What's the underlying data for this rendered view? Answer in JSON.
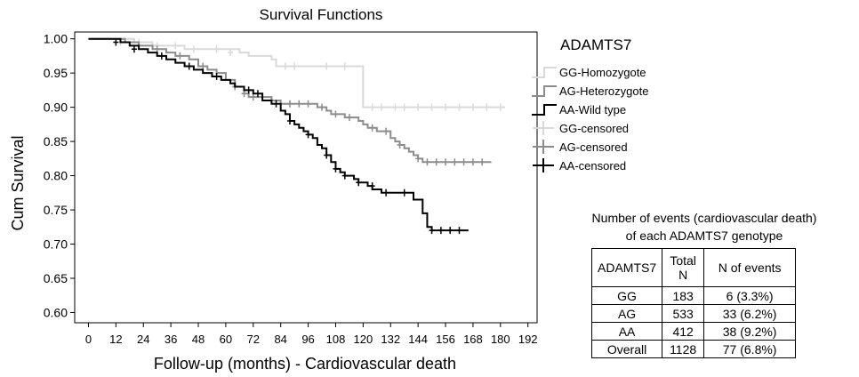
{
  "chart_data": {
    "type": "line",
    "title": "Survival Functions",
    "xlabel": "Follow-up (months) - Cardiovascular death",
    "ylabel": "Cum Survival",
    "xlim": [
      -6,
      196
    ],
    "ylim": [
      0.585,
      1.01
    ],
    "x_ticks": [
      0,
      12,
      24,
      36,
      48,
      60,
      72,
      84,
      96,
      108,
      120,
      132,
      144,
      156,
      168,
      180,
      192
    ],
    "x_tick_labels": [
      "0",
      "12",
      "24",
      "36",
      "48",
      "60",
      "72",
      "84",
      "96",
      "108",
      "120",
      "132",
      "144",
      "156",
      "168",
      "180",
      "192"
    ],
    "y_ticks": [
      0.6,
      0.65,
      0.7,
      0.75,
      0.8,
      0.85,
      0.9,
      0.95,
      1.0
    ],
    "y_tick_labels": [
      "0.60",
      "0.65",
      "0.70",
      "0.75",
      "0.80",
      "0.85",
      "0.90",
      "0.95",
      "1.00"
    ],
    "grid": false,
    "legend": {
      "title": "ADAMTS7",
      "placement": "right",
      "entries": [
        "GG-Homozygote",
        "AG-Heterozygote",
        "AA-Wild type",
        "GG-censored",
        "AG-censored",
        "AA-censored"
      ]
    },
    "series": [
      {
        "name": "GG-Homozygote",
        "censored_name": "GG-censored",
        "color": "#d9d9d9",
        "x": [
          0,
          12,
          20,
          28,
          34,
          42,
          50,
          66,
          70,
          80,
          82,
          94,
          98,
          118,
          120,
          182
        ],
        "y": [
          1.0,
          1.0,
          0.995,
          0.99,
          0.99,
          0.985,
          0.985,
          0.98,
          0.975,
          0.97,
          0.96,
          0.96,
          0.96,
          0.96,
          0.9,
          0.9
        ],
        "censored_x": [
          14,
          22,
          30,
          38,
          46,
          56,
          62,
          86,
          90,
          104,
          112,
          124,
          128,
          134,
          138,
          144,
          150,
          156,
          162,
          168,
          174,
          180
        ],
        "censored_y": [
          0.995,
          0.995,
          0.99,
          0.99,
          0.985,
          0.985,
          0.98,
          0.96,
          0.96,
          0.96,
          0.96,
          0.9,
          0.9,
          0.9,
          0.9,
          0.9,
          0.9,
          0.9,
          0.9,
          0.9,
          0.9,
          0.9
        ]
      },
      {
        "name": "AG-Heterozygote",
        "censored_name": "AG-censored",
        "color": "#8c8c8c",
        "x": [
          0,
          10,
          16,
          22,
          28,
          34,
          38,
          44,
          48,
          52,
          56,
          60,
          64,
          68,
          70,
          76,
          80,
          84,
          86,
          90,
          98,
          100,
          104,
          106,
          110,
          112,
          116,
          118,
          120,
          122,
          126,
          128,
          132,
          134,
          136,
          138,
          140,
          142,
          144,
          146,
          176
        ],
        "y": [
          1.0,
          1.0,
          0.995,
          0.99,
          0.985,
          0.98,
          0.975,
          0.97,
          0.96,
          0.955,
          0.95,
          0.94,
          0.93,
          0.92,
          0.915,
          0.915,
          0.91,
          0.905,
          0.905,
          0.905,
          0.905,
          0.9,
          0.895,
          0.89,
          0.89,
          0.885,
          0.885,
          0.88,
          0.875,
          0.87,
          0.865,
          0.865,
          0.855,
          0.85,
          0.845,
          0.84,
          0.835,
          0.83,
          0.825,
          0.82,
          0.82
        ],
        "censored_x": [
          30,
          40,
          50,
          64,
          68,
          72,
          76,
          80,
          88,
          92,
          96,
          102,
          108,
          114,
          124,
          130,
          136,
          144,
          148,
          152,
          156,
          160,
          164,
          168,
          172
        ],
        "censored_y": [
          0.985,
          0.975,
          0.96,
          0.93,
          0.92,
          0.915,
          0.915,
          0.91,
          0.905,
          0.905,
          0.905,
          0.9,
          0.89,
          0.885,
          0.87,
          0.865,
          0.845,
          0.825,
          0.82,
          0.82,
          0.82,
          0.82,
          0.82,
          0.82,
          0.82
        ]
      },
      {
        "name": "AA-Wild type",
        "censored_name": "AA-censored",
        "color": "#000000",
        "x": [
          0,
          8,
          14,
          18,
          22,
          26,
          30,
          34,
          38,
          42,
          46,
          50,
          54,
          58,
          62,
          64,
          68,
          72,
          76,
          80,
          84,
          86,
          88,
          90,
          92,
          94,
          96,
          98,
          100,
          102,
          104,
          106,
          108,
          110,
          112,
          116,
          118,
          120,
          122,
          124,
          126,
          128,
          134,
          136,
          142,
          146,
          148,
          150,
          166
        ],
        "y": [
          1.0,
          1.0,
          0.995,
          0.99,
          0.985,
          0.98,
          0.975,
          0.97,
          0.965,
          0.96,
          0.955,
          0.95,
          0.945,
          0.94,
          0.935,
          0.93,
          0.925,
          0.92,
          0.91,
          0.905,
          0.895,
          0.89,
          0.88,
          0.875,
          0.87,
          0.865,
          0.86,
          0.855,
          0.845,
          0.84,
          0.83,
          0.82,
          0.81,
          0.805,
          0.8,
          0.795,
          0.79,
          0.79,
          0.785,
          0.78,
          0.78,
          0.775,
          0.775,
          0.775,
          0.765,
          0.745,
          0.725,
          0.72,
          0.72
        ],
        "censored_x": [
          12,
          20,
          32,
          44,
          56,
          70,
          74,
          82,
          88,
          96,
          104,
          108,
          112,
          118,
          124,
          130,
          138,
          150,
          154,
          158,
          162
        ],
        "censored_y": [
          0.995,
          0.985,
          0.975,
          0.96,
          0.945,
          0.925,
          0.92,
          0.905,
          0.88,
          0.86,
          0.83,
          0.81,
          0.8,
          0.79,
          0.785,
          0.775,
          0.775,
          0.72,
          0.72,
          0.72,
          0.72
        ]
      }
    ]
  },
  "events_table": {
    "title_line1": "Number of events (cardiovascular death)",
    "title_line2": "of each ADAMTS7 genotype",
    "headers": [
      "ADAMTS7",
      "Total N",
      "N of events"
    ],
    "rows": [
      [
        "GG",
        "183",
        "6 (3.3%)"
      ],
      [
        "AG",
        "533",
        "33 (6.2%)"
      ],
      [
        "AA",
        "412",
        "38 (9.2%)"
      ],
      [
        "Overall",
        "1128",
        "77 (6.8%)"
      ]
    ]
  }
}
